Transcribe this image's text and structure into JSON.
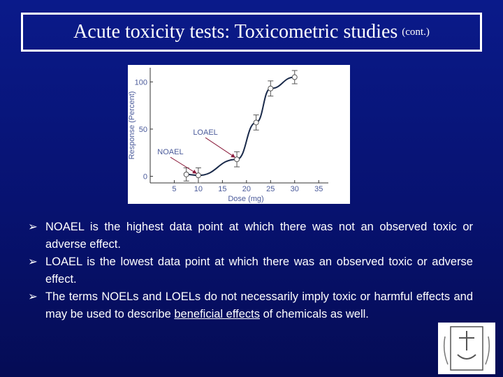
{
  "title": "Acute toxicity tests: Toxicometric studies",
  "title_suffix": "(cont.)",
  "chart_data": {
    "type": "scatter",
    "x_label": "Dose (mg)",
    "y_label": "Response (Percent)",
    "x": [
      7.5,
      10,
      18,
      22,
      25,
      30
    ],
    "values": [
      2,
      1,
      18,
      57,
      93,
      105
    ],
    "errors": [
      7,
      8,
      8,
      8,
      8,
      7
    ],
    "color": "#555555",
    "line_color": "#1a2a4a",
    "xlim": [
      0,
      37
    ],
    "ylim": [
      -7,
      115
    ],
    "xticks": [
      5,
      10,
      15,
      20,
      25,
      30,
      35
    ],
    "yticks": [
      0,
      50,
      100
    ],
    "annotations": [
      {
        "text": "NOAEL",
        "point": 1
      },
      {
        "text": "LOAEL",
        "point": 2
      }
    ]
  },
  "bullets": [
    "NOAEL is the highest data point at which there was not an observed toxic or adverse effect.",
    "LOAEL is the lowest data point at which there was an observed toxic or adverse effect.",
    [
      "The terms NOELs and LOELs do not necessarily imply toxic or harmful effects and may be used to describe",
      "beneficial effects",
      "of chemicals as well."
    ]
  ]
}
